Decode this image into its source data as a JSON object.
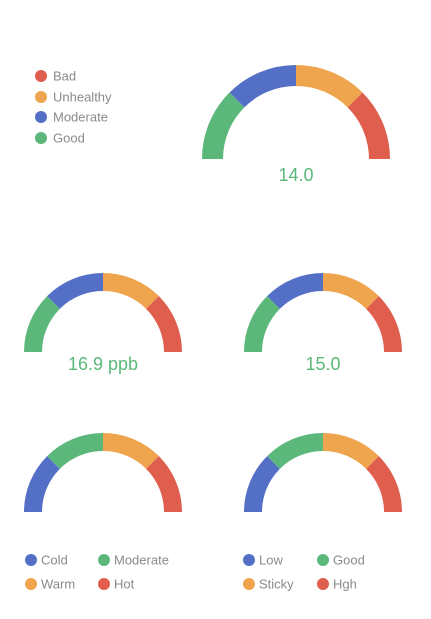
{
  "chart_data": [
    {
      "type": "gauge",
      "value_label": "14.0",
      "segments": [
        {
          "name": "Good",
          "color": "#5cb87a",
          "fraction": 0.25
        },
        {
          "name": "Moderate",
          "color": "#5470c6",
          "fraction": 0.25
        },
        {
          "name": "Unhealthy",
          "color": "#eea54e",
          "fraction": 0.25
        },
        {
          "name": "Bad",
          "color": "#e05e4e",
          "fraction": 0.25
        }
      ],
      "legend": [
        "Bad",
        "Unhealthy",
        "Moderate",
        "Good"
      ],
      "legend_colors": [
        "#e05e4e",
        "#eea54e",
        "#5470c6",
        "#5cb87a"
      ]
    },
    {
      "type": "gauge",
      "value_label": "16.9 ppb",
      "segments": [
        {
          "name": "Good",
          "color": "#5cb87a",
          "fraction": 0.25
        },
        {
          "name": "Moderate",
          "color": "#5470c6",
          "fraction": 0.25
        },
        {
          "name": "Unhealthy",
          "color": "#eea54e",
          "fraction": 0.25
        },
        {
          "name": "Bad",
          "color": "#e05e4e",
          "fraction": 0.25
        }
      ]
    },
    {
      "type": "gauge",
      "value_label": "15.0",
      "segments": [
        {
          "name": "Good",
          "color": "#5cb87a",
          "fraction": 0.25
        },
        {
          "name": "Moderate",
          "color": "#5470c6",
          "fraction": 0.25
        },
        {
          "name": "Unhealthy",
          "color": "#eea54e",
          "fraction": 0.25
        },
        {
          "name": "Bad",
          "color": "#e05e4e",
          "fraction": 0.25
        }
      ]
    },
    {
      "type": "gauge",
      "value_label": "",
      "segments": [
        {
          "name": "Cold",
          "color": "#5470c6",
          "fraction": 0.25
        },
        {
          "name": "Moderate",
          "color": "#5cb87a",
          "fraction": 0.25
        },
        {
          "name": "Warm",
          "color": "#eea54e",
          "fraction": 0.25
        },
        {
          "name": "Hot",
          "color": "#e05e4e",
          "fraction": 0.25
        }
      ],
      "legend": [
        "Cold",
        "Moderate",
        "Warm",
        "Hot"
      ],
      "legend_colors": [
        "#5470c6",
        "#5cb87a",
        "#eea54e",
        "#e05e4e"
      ]
    },
    {
      "type": "gauge",
      "value_label": "",
      "segments": [
        {
          "name": "Low",
          "color": "#5470c6",
          "fraction": 0.25
        },
        {
          "name": "Good",
          "color": "#5cb87a",
          "fraction": 0.25
        },
        {
          "name": "Sticky",
          "color": "#eea54e",
          "fraction": 0.25
        },
        {
          "name": "Hgh",
          "color": "#e05e4e",
          "fraction": 0.25
        }
      ],
      "legend": [
        "Low",
        "Good",
        "Sticky",
        "Hgh"
      ],
      "legend_colors": [
        "#5470c6",
        "#5cb87a",
        "#eea54e",
        "#e05e4e"
      ]
    }
  ]
}
